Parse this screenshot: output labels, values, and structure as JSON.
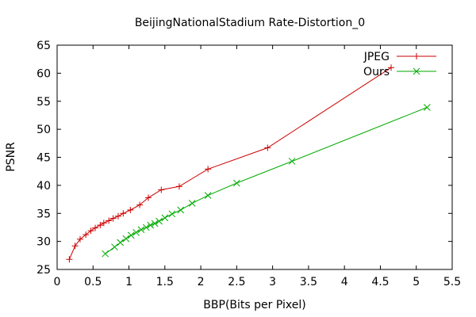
{
  "chart_data": {
    "type": "line",
    "title": "BeijingNationalStadium Rate-Distortion_0",
    "xlabel": "BBP(Bits per Pixel)",
    "ylabel": "PSNR",
    "xlim": [
      0,
      5.5
    ],
    "ylim": [
      25,
      65
    ],
    "xticks": [
      0,
      0.5,
      1,
      1.5,
      2,
      2.5,
      3,
      3.5,
      4,
      4.5,
      5,
      5.5
    ],
    "yticks": [
      25,
      30,
      35,
      40,
      45,
      50,
      55,
      60,
      65
    ],
    "xtick_labels": [
      "0",
      "0.5",
      "1",
      "1.5",
      "2",
      "2.5",
      "3",
      "3.5",
      "4",
      "4.5",
      "5",
      "5.5"
    ],
    "ytick_labels": [
      "25",
      "30",
      "35",
      "40",
      "45",
      "50",
      "55",
      "60",
      "65"
    ],
    "grid": false,
    "legend_position": "top-right",
    "series": [
      {
        "name": "JPEG",
        "color": "#cc0000",
        "marker": "plus",
        "x": [
          0.17,
          0.25,
          0.32,
          0.4,
          0.47,
          0.53,
          0.6,
          0.65,
          0.72,
          0.78,
          0.85,
          0.92,
          1.02,
          1.15,
          1.27,
          1.45,
          1.7,
          2.1,
          2.93,
          4.65
        ],
        "y": [
          26.8,
          29.2,
          30.4,
          31.2,
          31.9,
          32.4,
          32.9,
          33.3,
          33.7,
          34.1,
          34.5,
          35.0,
          35.6,
          36.5,
          37.8,
          39.2,
          39.8,
          42.9,
          46.7,
          61.0
        ]
      },
      {
        "name": "Ours",
        "color": "#00aa00",
        "marker": "cross",
        "x": [
          0.67,
          0.8,
          0.88,
          0.96,
          1.03,
          1.1,
          1.17,
          1.24,
          1.3,
          1.36,
          1.42,
          1.5,
          1.6,
          1.72,
          1.88,
          2.1,
          2.5,
          3.27,
          5.15
        ],
        "y": [
          27.8,
          29.0,
          29.8,
          30.5,
          31.1,
          31.6,
          32.1,
          32.5,
          32.9,
          33.2,
          33.6,
          34.2,
          34.9,
          35.6,
          36.8,
          38.2,
          40.4,
          44.3,
          53.9
        ]
      }
    ]
  }
}
